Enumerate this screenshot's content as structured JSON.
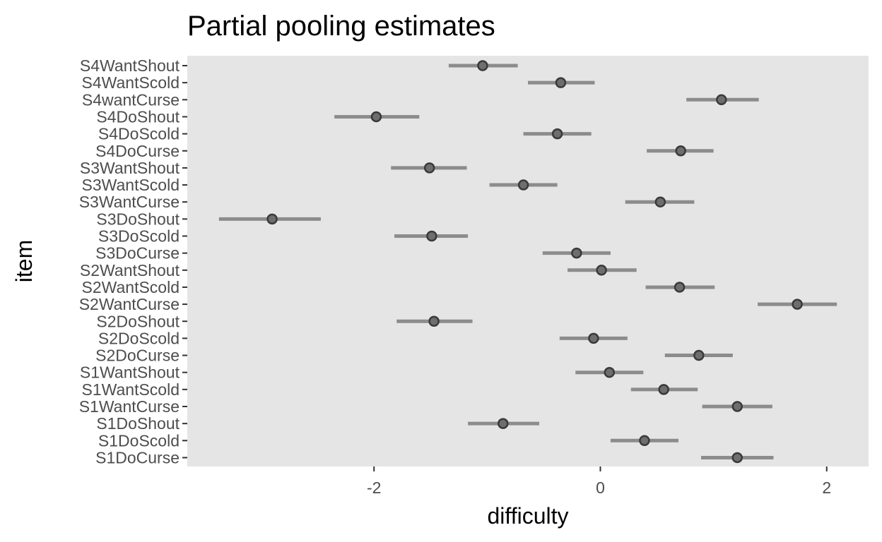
{
  "chart_data": {
    "type": "scatter",
    "title": "Partial pooling estimates",
    "xlabel": "difficulty",
    "ylabel": "item",
    "xlim": [
      -3.65,
      2.37
    ],
    "x_ticks": [
      -2,
      0,
      2
    ],
    "x_tick_labels": [
      "-2",
      "0",
      "2"
    ],
    "grid": false,
    "legend": "none",
    "colors": {
      "panel": "#e5e5e5",
      "interval": "#8c8c8c",
      "point_fill": "#6e6e6e",
      "point_stroke": "#3a3a3a",
      "tick": "#333333"
    },
    "points": [
      {
        "item": "S4WantShout",
        "estimate": -1.04,
        "lower": -1.34,
        "upper": -0.73
      },
      {
        "item": "S4WantScold",
        "estimate": -0.35,
        "lower": -0.64,
        "upper": -0.05
      },
      {
        "item": "S4wantCurse",
        "estimate": 1.07,
        "lower": 0.76,
        "upper": 1.4
      },
      {
        "item": "S4DoShout",
        "estimate": -1.98,
        "lower": -2.35,
        "upper": -1.6
      },
      {
        "item": "S4DoScold",
        "estimate": -0.38,
        "lower": -0.68,
        "upper": -0.08
      },
      {
        "item": "S4DoCurse",
        "estimate": 0.71,
        "lower": 0.41,
        "upper": 1.0
      },
      {
        "item": "S3WantShout",
        "estimate": -1.51,
        "lower": -1.85,
        "upper": -1.18
      },
      {
        "item": "S3WantScold",
        "estimate": -0.68,
        "lower": -0.98,
        "upper": -0.38
      },
      {
        "item": "S3WantCurse",
        "estimate": 0.53,
        "lower": 0.22,
        "upper": 0.83
      },
      {
        "item": "S3DoShout",
        "estimate": -2.9,
        "lower": -3.37,
        "upper": -2.47
      },
      {
        "item": "S3DoScold",
        "estimate": -1.49,
        "lower": -1.82,
        "upper": -1.17
      },
      {
        "item": "S3DoCurse",
        "estimate": -0.21,
        "lower": -0.51,
        "upper": 0.09
      },
      {
        "item": "S2WantShout",
        "estimate": 0.01,
        "lower": -0.29,
        "upper": 0.32
      },
      {
        "item": "S2WantScold",
        "estimate": 0.7,
        "lower": 0.4,
        "upper": 1.01
      },
      {
        "item": "S2WantCurse",
        "estimate": 1.74,
        "lower": 1.39,
        "upper": 2.09
      },
      {
        "item": "S2DoShout",
        "estimate": -1.47,
        "lower": -1.8,
        "upper": -1.13
      },
      {
        "item": "S2DoScold",
        "estimate": -0.06,
        "lower": -0.36,
        "upper": 0.24
      },
      {
        "item": "S2DoCurse",
        "estimate": 0.87,
        "lower": 0.57,
        "upper": 1.17
      },
      {
        "item": "S1WantShout",
        "estimate": 0.08,
        "lower": -0.22,
        "upper": 0.38
      },
      {
        "item": "S1WantScold",
        "estimate": 0.56,
        "lower": 0.27,
        "upper": 0.86
      },
      {
        "item": "S1WantCurse",
        "estimate": 1.21,
        "lower": 0.9,
        "upper": 1.52
      },
      {
        "item": "S1DoShout",
        "estimate": -0.86,
        "lower": -1.17,
        "upper": -0.54
      },
      {
        "item": "S1DoScold",
        "estimate": 0.39,
        "lower": 0.09,
        "upper": 0.69
      },
      {
        "item": "S1DoCurse",
        "estimate": 1.21,
        "lower": 0.89,
        "upper": 1.53
      }
    ]
  }
}
